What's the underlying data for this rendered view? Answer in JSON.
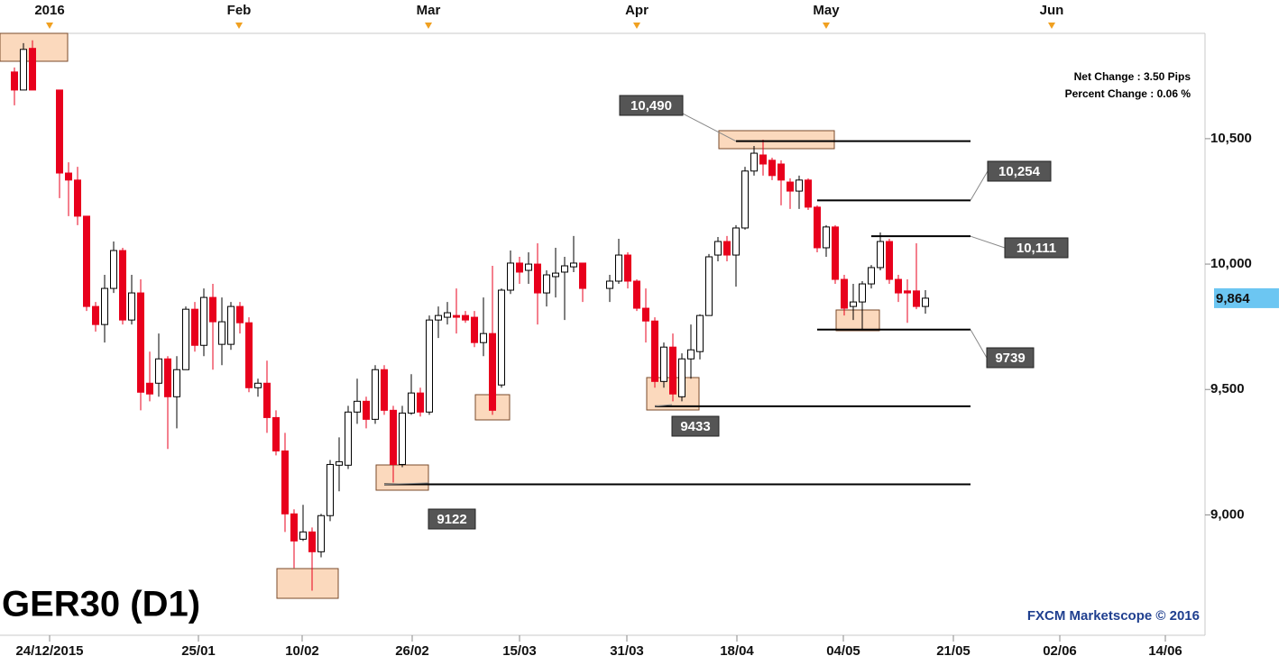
{
  "chart_data": {
    "type": "candlestick",
    "title": "GER30 (D1)",
    "watermark": "FXCM Marketscope © 2016",
    "stats": [
      "Net Change : 3.50 Pips",
      "Percent Change : 0.06 %"
    ],
    "up_color": "#ffffff",
    "down_color": "#e8001c",
    "xlim": [
      -0.6,
      133
    ],
    "ylim": [
      8520,
      10920
    ],
    "yticks": [
      {
        "value": 9000,
        "label": "9,000"
      },
      {
        "value": 9500,
        "label": "9,500"
      },
      {
        "value": 10000,
        "label": "10,000"
      },
      {
        "value": 10500,
        "label": "10,500"
      }
    ],
    "xticks": [
      {
        "value": 4.9,
        "label": "24/12/2015"
      },
      {
        "value": 21.4,
        "label": "25/01"
      },
      {
        "value": 32.9,
        "label": "10/02"
      },
      {
        "value": 45.1,
        "label": "26/02"
      },
      {
        "value": 57,
        "label": "15/03"
      },
      {
        "value": 68.9,
        "label": "31/03"
      },
      {
        "value": 81.1,
        "label": "18/04"
      },
      {
        "value": 92.9,
        "label": "04/05"
      },
      {
        "value": 105.1,
        "label": "21/05"
      },
      {
        "value": 116.9,
        "label": "02/06"
      },
      {
        "value": 128.6,
        "label": "14/06"
      }
    ],
    "xticks_top": [
      {
        "value": 4.9,
        "label": "2016"
      },
      {
        "value": 25.9,
        "label": "Feb"
      },
      {
        "value": 46.9,
        "label": "Mar"
      },
      {
        "value": 70,
        "label": "Apr"
      },
      {
        "value": 91,
        "label": "May"
      },
      {
        "value": 116,
        "label": "Jun"
      }
    ],
    "last_price": {
      "value": 9864,
      "label": "9,864"
    },
    "x": [
      1,
      2,
      3,
      6,
      7,
      8,
      9,
      10,
      11,
      12,
      13,
      14,
      15,
      16,
      17,
      18,
      19,
      20,
      21,
      22,
      23,
      24,
      25,
      26,
      27,
      28,
      29,
      30,
      31,
      32,
      33,
      34,
      35,
      36,
      37,
      38,
      39,
      40,
      41,
      42,
      43,
      44,
      45,
      46,
      47,
      48,
      49,
      50,
      51,
      52,
      53,
      54,
      55,
      56,
      57,
      58,
      59,
      60,
      61,
      62,
      63,
      64,
      67,
      68,
      69,
      70,
      71,
      72,
      73,
      74,
      75,
      76,
      77,
      78,
      79,
      80,
      81,
      82,
      83,
      84,
      85,
      86,
      87,
      88,
      89,
      90,
      91,
      92,
      93,
      94,
      95,
      96,
      97,
      98,
      99,
      100,
      101,
      102
    ],
    "open": [
      10766,
      10694,
      10860,
      10694,
      10363,
      10335,
      10191,
      9831,
      9759,
      9903,
      10054,
      9777,
      9885,
      9525,
      9525,
      9622,
      9471,
      9579,
      9820,
      9676,
      9867,
      9680,
      9680,
      9831,
      9766,
      9507,
      9525,
      9388,
      9255,
      9004,
      8903,
      8932,
      8853,
      8997,
      9198,
      9198,
      9410,
      9453,
      9381,
      9579,
      9417,
      9201,
      9406,
      9486,
      9410,
      9777,
      9788,
      9795,
      9795,
      9788,
      9687,
      9723,
      9518,
      9896,
      10004,
      9975,
      10000,
      9885,
      9950,
      9968,
      9989,
      10004,
      9903,
      9932,
      10036,
      9932,
      9824,
      9773,
      9532,
      9669,
      9471,
      9622,
      9651,
      9795,
      10036,
      10090,
      10036,
      10144,
      10371,
      10435,
      10414,
      10399,
      10327,
      10291,
      10335,
      10227,
      10065,
      10148,
      9939,
      9831,
      9849,
      9921,
      9986,
      10090,
      9939,
      9893,
      9893,
      9831
    ],
    "high": [
      10784,
      10881,
      10892,
      10694,
      10406,
      10388,
      10191,
      9849,
      9957,
      10090,
      10065,
      9957,
      9939,
      9651,
      9723,
      9633,
      9633,
      9831,
      9849,
      9903,
      9921,
      9867,
      9849,
      9849,
      9788,
      9543,
      9615,
      9417,
      9327,
      9022,
      9040,
      8950,
      9004,
      9219,
      9309,
      9435,
      9543,
      9471,
      9597,
      9597,
      9435,
      9435,
      9561,
      9507,
      9795,
      9831,
      9849,
      9903,
      9813,
      9813,
      9867,
      9993,
      9903,
      10054,
      10029,
      10047,
      10083,
      9975,
      10065,
      10029,
      10112,
      10004,
      9957,
      10101,
      10047,
      9939,
      9903,
      9788,
      9687,
      9723,
      9644,
      9759,
      9800,
      10040,
      10108,
      10112,
      10155,
      10388,
      10471,
      10496,
      10424,
      10414,
      10342,
      10353,
      10342,
      10234,
      10155,
      10155,
      9957,
      9921,
      9932,
      9996,
      10126,
      10101,
      9957,
      9939,
      10083,
      9896
    ],
    "low": [
      10633,
      10694,
      10694,
      10263,
      10191,
      10155,
      9813,
      9731,
      9687,
      9885,
      9759,
      9759,
      9417,
      9453,
      9471,
      9263,
      9345,
      9579,
      9651,
      9633,
      9579,
      9597,
      9658,
      9723,
      9489,
      9471,
      9327,
      9237,
      8932,
      8788,
      8896,
      8698,
      8831,
      8975,
      9094,
      9183,
      9363,
      9345,
      9363,
      9399,
      9129,
      9190,
      9399,
      9392,
      9399,
      9705,
      9759,
      9723,
      9766,
      9669,
      9633,
      9399,
      9507,
      9881,
      9921,
      9921,
      9759,
      9831,
      9867,
      9777,
      9968,
      9849,
      9849,
      9921,
      9903,
      9813,
      9687,
      9507,
      9507,
      9453,
      9453,
      9543,
      9620,
      9795,
      10011,
      10011,
      9910,
      10137,
      10353,
      10353,
      10335,
      10234,
      10220,
      10220,
      10216,
      10047,
      10029,
      9921,
      9795,
      9777,
      9741,
      9903,
      9975,
      9921,
      9849,
      9766,
      9820,
      9802
    ],
    "close": [
      10694,
      10856,
      10694,
      10363,
      10335,
      10191,
      9831,
      9759,
      9903,
      10054,
      9777,
      9885,
      9489,
      9482,
      9622,
      9471,
      9579,
      9820,
      9676,
      9867,
      9770,
      9770,
      9831,
      9766,
      9507,
      9525,
      9388,
      9255,
      9004,
      8896,
      8932,
      8853,
      8997,
      9201,
      9212,
      9410,
      9453,
      9381,
      9579,
      9417,
      9201,
      9406,
      9486,
      9410,
      9777,
      9795,
      9806,
      9788,
      9777,
      9687,
      9723,
      9417,
      9896,
      10004,
      9968,
      10000,
      9885,
      9957,
      9964,
      9993,
      10004,
      9903,
      9932,
      10036,
      9932,
      9824,
      9773,
      9532,
      9669,
      9482,
      9622,
      9658,
      9795,
      10029,
      10090,
      10036,
      10144,
      10371,
      10442,
      10399,
      10353,
      10335,
      10291,
      10335,
      10227,
      10065,
      10148,
      9939,
      9824,
      9849,
      9921,
      9986,
      10090,
      9939,
      9885,
      9885,
      9831,
      9864
    ],
    "levels": [
      {
        "value": 10490,
        "label": "10,490",
        "from": 81,
        "to": 107
      },
      {
        "value": 10254,
        "label": "10,254",
        "from": 90,
        "to": 107
      },
      {
        "value": 10111,
        "label": "10,111",
        "from": 96,
        "to": 107
      },
      {
        "value": 9739,
        "label": "9739",
        "from": 90,
        "to": 107
      },
      {
        "value": 9433,
        "label": "9433",
        "from": 72,
        "to": 107
      },
      {
        "value": 9122,
        "label": "9122",
        "from": 42,
        "to": 107
      }
    ]
  }
}
